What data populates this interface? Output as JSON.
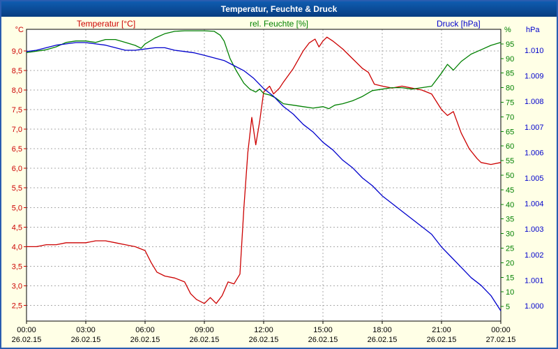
{
  "window": {
    "title": "Temperatur, Feuchte & Druck"
  },
  "colors": {
    "titlebar": "#0a4a9e",
    "window_border": "#2a5db0",
    "background": "#ffffe6",
    "plot_background": "#ffffff",
    "plot_frame": "#000000",
    "temperature": "#cc0000",
    "humidity": "#008000",
    "pressure": "#0000cc",
    "grid": "#aaaaaa"
  },
  "chart_data": {
    "type": "line",
    "title": "Temperatur, Feuchte & Druck",
    "grid": {
      "style": "dashed",
      "color": "#aaaaaa"
    },
    "x_axis": {
      "unit": "hours",
      "range": [
        0,
        24
      ],
      "tick_hours": [
        0,
        3,
        6,
        9,
        12,
        15,
        18,
        21,
        24
      ],
      "tick_times": [
        "00:00",
        "03:00",
        "06:00",
        "09:00",
        "12:00",
        "15:00",
        "18:00",
        "21:00",
        "00:00"
      ],
      "tick_dates": [
        "26.02.15",
        "26.02.15",
        "26.02.15",
        "26.02.15",
        "26.02.15",
        "26.02.15",
        "26.02.15",
        "26.02.15",
        "27.02.15"
      ],
      "grid_hours": [
        3,
        6,
        9,
        12,
        15,
        18,
        21
      ]
    },
    "axes": {
      "temperature": {
        "title": "Temperatur [°C]",
        "unit": "°C",
        "color": "#cc0000",
        "side": "left",
        "min": 2.1,
        "max": 9.55,
        "tick_values": [
          9.0,
          8.5,
          8.0,
          7.5,
          7.0,
          6.5,
          6.0,
          5.5,
          5.0,
          4.5,
          4.0,
          3.5,
          3.0,
          2.5
        ],
        "tick_labels": [
          "9,0",
          "8,5",
          "8,0",
          "7,5",
          "7,0",
          "6,5",
          "6,0",
          "5,5",
          "5,0",
          "4,5",
          "4,0",
          "3,5",
          "3,0",
          "2,5"
        ]
      },
      "humidity": {
        "title": "rel. Feuchte [%]",
        "unit": "%",
        "color": "#008000",
        "side": "right",
        "min": 0,
        "max": 100,
        "tick_values": [
          95,
          90,
          85,
          80,
          75,
          70,
          65,
          60,
          55,
          50,
          45,
          40,
          35,
          30,
          25,
          20,
          15,
          10,
          5
        ],
        "tick_labels": [
          "95",
          "90",
          "85",
          "80",
          "75",
          "70",
          "65",
          "60",
          "55",
          "50",
          "45",
          "40",
          "35",
          "30",
          "25",
          "20",
          "15",
          "10",
          "5"
        ]
      },
      "pressure": {
        "title": "Druck [hPa]",
        "unit": "hPa",
        "color": "#0000cc",
        "side": "far-right",
        "min": 0.9994,
        "max": 1.01082,
        "tick_values": [
          1.01,
          1.009,
          1.008,
          1.007,
          1.006,
          1.005,
          1.004,
          1.003,
          1.002,
          1.001,
          1.0
        ],
        "tick_labels": [
          "1.010",
          "1.009",
          "1.008",
          "1.007",
          "1.006",
          "1.005",
          "1.004",
          "1.003",
          "1.002",
          "1.001",
          "1.000"
        ]
      }
    },
    "series": [
      {
        "name": "Temperatur",
        "axis": "temperature",
        "x": [
          0,
          0.5,
          1,
          1.5,
          2,
          2.5,
          3,
          3.5,
          4,
          4.5,
          5,
          5.5,
          6,
          6.3,
          6.6,
          7,
          7.5,
          8,
          8.3,
          8.6,
          9,
          9.3,
          9.6,
          9.9,
          10.2,
          10.5,
          10.8,
          11,
          11.2,
          11.4,
          11.6,
          11.8,
          12,
          12.3,
          12.5,
          12.8,
          13,
          13.5,
          14,
          14.3,
          14.6,
          14.8,
          15,
          15.2,
          15.5,
          16,
          16.5,
          17,
          17.3,
          17.6,
          18,
          18.5,
          19,
          19.5,
          20,
          20.5,
          21,
          21.3,
          21.6,
          22,
          22.4,
          22.8,
          23,
          23.5,
          24
        ],
        "values": [
          4.0,
          4.0,
          4.05,
          4.05,
          4.1,
          4.1,
          4.1,
          4.15,
          4.15,
          4.1,
          4.05,
          4.0,
          3.9,
          3.6,
          3.35,
          3.25,
          3.2,
          3.1,
          2.8,
          2.65,
          2.55,
          2.7,
          2.55,
          2.75,
          3.1,
          3.05,
          3.3,
          5.0,
          6.4,
          7.3,
          6.6,
          7.2,
          7.95,
          8.1,
          7.9,
          8.05,
          8.2,
          8.55,
          9.0,
          9.2,
          9.3,
          9.1,
          9.25,
          9.35,
          9.25,
          9.05,
          8.8,
          8.55,
          8.45,
          8.15,
          8.1,
          8.05,
          8.1,
          8.05,
          8.0,
          7.9,
          7.5,
          7.35,
          7.45,
          6.9,
          6.5,
          6.25,
          6.15,
          6.1,
          6.15
        ]
      },
      {
        "name": "rel. Feuchte",
        "axis": "humidity",
        "x": [
          0,
          0.5,
          1,
          1.5,
          2,
          2.5,
          3,
          3.5,
          4,
          4.5,
          5,
          5.5,
          5.8,
          6,
          6.5,
          7,
          7.5,
          8,
          8.5,
          9,
          9.5,
          9.8,
          10,
          10.3,
          10.6,
          11,
          11.3,
          11.6,
          11.8,
          12,
          12.3,
          12.6,
          13,
          13.5,
          14,
          14.5,
          15,
          15.3,
          15.6,
          16,
          16.5,
          17,
          17.5,
          18,
          18.5,
          19,
          19.5,
          20,
          20.5,
          21,
          21.3,
          21.6,
          22,
          22.5,
          23,
          23.5,
          24
        ],
        "values": [
          92,
          92.5,
          93,
          94,
          95.5,
          96,
          96,
          95.5,
          96.5,
          96.5,
          95.5,
          94.5,
          93.5,
          95,
          97,
          98.5,
          99.3,
          99.5,
          99.5,
          99.5,
          99.3,
          98,
          96,
          90,
          86,
          81.5,
          79.5,
          78.5,
          79.5,
          78,
          77.5,
          76.5,
          74.5,
          74,
          73.5,
          73,
          73.5,
          72.8,
          74,
          74.5,
          75.5,
          77,
          79,
          79.5,
          80,
          80,
          79.5,
          80,
          80.5,
          85,
          88,
          86,
          89,
          91.5,
          93,
          94.5,
          95.5
        ]
      },
      {
        "name": "Druck",
        "axis": "pressure",
        "x": [
          0,
          0.5,
          1,
          1.5,
          2,
          2.5,
          3,
          3.5,
          4,
          4.5,
          5,
          5.5,
          6,
          6.5,
          7,
          7.5,
          8,
          8.5,
          9,
          9.5,
          10,
          10.5,
          11,
          11.5,
          12,
          12.5,
          13,
          13.5,
          14,
          14.5,
          15,
          15.5,
          16,
          16.5,
          17,
          17.5,
          18,
          18.5,
          19,
          19.5,
          20,
          20.5,
          21,
          21.5,
          22,
          22.5,
          23,
          23.5,
          24
        ],
        "values": [
          1.00995,
          1.01,
          1.0101,
          1.0102,
          1.01025,
          1.0103,
          1.0103,
          1.01025,
          1.0102,
          1.0101,
          1.01,
          1.01,
          1.01005,
          1.0101,
          1.0101,
          1.01,
          1.00995,
          1.0099,
          1.0098,
          1.0097,
          1.0096,
          1.0094,
          1.0092,
          1.0089,
          1.0085,
          1.0082,
          1.0078,
          1.0075,
          1.0071,
          1.0068,
          1.0064,
          1.0061,
          1.0057,
          1.0054,
          1.005,
          1.0047,
          1.0043,
          1.004,
          1.0037,
          1.0034,
          1.0031,
          1.0028,
          1.0023,
          1.0019,
          1.0015,
          1.0011,
          1.0008,
          1.0004,
          0.9998
        ]
      }
    ]
  }
}
